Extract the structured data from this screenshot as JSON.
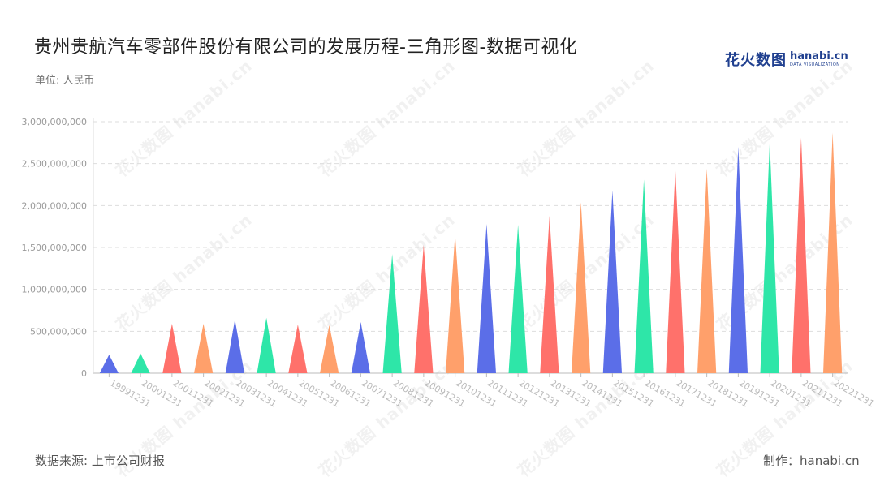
{
  "title": "贵州贵航汽车零部件股份有限公司的发展历程-三角形图-数据可视化",
  "unit": "单位: 人民币",
  "logo": {
    "cn": "花火数图",
    "en": "hanabi.cn",
    "sub": "DATA VISUALIZATION"
  },
  "source": "数据来源: 上市公司财报",
  "maker": "制作：hanabi.cn",
  "watermark": "花火数图 hanabi.cn",
  "colors": {
    "palette": [
      "#5b6ee8",
      "#2ee6a8",
      "#ff716b",
      "#ffa06b"
    ],
    "grid": "#dddddd",
    "axis_text": "#999999",
    "x_text": "#bbbbbb"
  },
  "chart_data": {
    "type": "bar",
    "mark": "triangle",
    "categories": [
      "19991231",
      "20001231",
      "20011231",
      "20021231",
      "20031231",
      "20041231",
      "20051231",
      "20061231",
      "20071231",
      "20081231",
      "20091231",
      "20101231",
      "20111231",
      "20121231",
      "20131231",
      "20141231",
      "20151231",
      "20161231",
      "20171231",
      "20181231",
      "20191231",
      "20201231",
      "20211231",
      "20221231"
    ],
    "values": [
      220000000,
      235000000,
      590000000,
      590000000,
      640000000,
      660000000,
      580000000,
      575000000,
      610000000,
      1420000000,
      1530000000,
      1660000000,
      1780000000,
      1770000000,
      1880000000,
      2040000000,
      2180000000,
      2310000000,
      2440000000,
      2440000000,
      2700000000,
      2760000000,
      2810000000,
      2870000000
    ],
    "yticks": [
      "0",
      "500,000,000",
      "1,000,000,000",
      "1,500,000,000",
      "2,000,000,000",
      "2,500,000,000",
      "3,000,000,000"
    ],
    "ylim": [
      0,
      3000000000
    ],
    "grid": true,
    "xlabel": "",
    "ylabel": ""
  }
}
